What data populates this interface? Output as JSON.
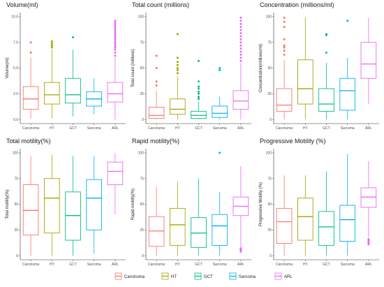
{
  "colors": {
    "Carcinoma": "#F8766D",
    "HT": "#A3A500",
    "GCT": "#00BF7D",
    "Sarcoma": "#00B0F6",
    "ARL": "#E76BF3"
  },
  "legend": {
    "position": "bottom",
    "items": [
      "Carcinoma",
      "HT",
      "GCT",
      "Sarcoma",
      "ARL"
    ]
  },
  "chart_data": [
    {
      "type": "boxplot",
      "title": "Volume(ml)",
      "xlabel": "",
      "ylabel": "Volume(ml)",
      "ylim": [
        -0.4,
        10.4
      ],
      "yticks": [
        0,
        2.5,
        5,
        7.5,
        10
      ],
      "ytick_labels": [
        "0.0",
        "2.5",
        "5.0",
        "7.5",
        "10.0"
      ],
      "categories": [
        "Carcinoma",
        "HT",
        "GCT",
        "Sarcoma",
        "ARL"
      ],
      "boxes": [
        {
          "name": "Carcinoma",
          "min": 0.1,
          "q1": 1.0,
          "median": 2.0,
          "q3": 3.2,
          "max": 6.0,
          "outliers": [
            6.5,
            7.5
          ]
        },
        {
          "name": "HT",
          "min": 0.1,
          "q1": 1.5,
          "median": 2.4,
          "q3": 3.6,
          "max": 6.8,
          "outliers": [
            7.0,
            7.2,
            7.4,
            7.6
          ]
        },
        {
          "name": "GCT",
          "min": 0.3,
          "q1": 1.6,
          "median": 2.4,
          "q3": 4.0,
          "max": 6.8,
          "outliers": [
            8.0
          ]
        },
        {
          "name": "Sarcoma",
          "min": 0.5,
          "q1": 1.3,
          "median": 2.0,
          "q3": 2.7,
          "max": 4.0,
          "outliers": []
        },
        {
          "name": "ARL",
          "min": 0.0,
          "q1": 1.7,
          "median": 2.5,
          "q3": 3.6,
          "max": 6.0,
          "outliers": [
            6.2,
            6.5,
            6.8,
            7.0,
            7.2,
            7.4,
            7.6,
            7.8,
            8.0,
            8.2,
            8.4,
            8.6,
            8.8,
            9.0,
            9.2,
            9.4,
            9.6
          ]
        }
      ]
    },
    {
      "type": "boxplot",
      "title": "Total count (millions)",
      "xlabel": "",
      "ylabel": "Total count (millions)",
      "ylim": [
        -4,
        104
      ],
      "yticks": [
        0,
        25,
        50,
        75,
        100
      ],
      "ytick_labels": [
        "0",
        "25",
        "50",
        "75",
        "100"
      ],
      "categories": [
        "Carcinoma",
        "HT",
        "GCT",
        "Sarcoma",
        "ARL"
      ],
      "boxes": [
        {
          "name": "Carcinoma",
          "min": 0,
          "q1": 1,
          "median": 4,
          "q3": 12,
          "max": 28,
          "outliers": [
            33,
            37,
            50,
            62
          ]
        },
        {
          "name": "HT",
          "min": 0,
          "q1": 5,
          "median": 10,
          "q3": 20,
          "max": 42,
          "outliers": [
            45,
            48,
            50,
            53,
            56,
            60,
            83
          ]
        },
        {
          "name": "GCT",
          "min": 0,
          "q1": 1,
          "median": 4,
          "q3": 8,
          "max": 17,
          "outliers": [
            20,
            22,
            25,
            27,
            30,
            32,
            37,
            57
          ]
        },
        {
          "name": "Sarcoma",
          "min": 0,
          "q1": 2,
          "median": 6,
          "q3": 13,
          "max": 22,
          "outliers": [
            48,
            50
          ]
        },
        {
          "name": "ARL",
          "min": 0,
          "q1": 10,
          "median": 18,
          "q3": 28,
          "max": 55,
          "outliers": [
            57,
            60,
            63,
            66,
            69,
            72,
            75,
            78,
            81,
            84,
            87,
            90,
            93,
            96,
            99
          ]
        }
      ]
    },
    {
      "type": "boxplot",
      "title": "Concentration (millions/ml)",
      "xlabel": "",
      "ylabel": "Concentration(millions/ml)",
      "ylim": [
        -4,
        104
      ],
      "yticks": [
        0,
        25,
        50,
        75,
        100
      ],
      "ytick_labels": [
        "0",
        "25",
        "50",
        "75",
        "100"
      ],
      "categories": [
        "Carcinoma",
        "HT",
        "GCT",
        "Sarcoma",
        "ARL"
      ],
      "boxes": [
        {
          "name": "Carcinoma",
          "min": 0,
          "q1": 8,
          "median": 14,
          "q3": 30,
          "max": 58,
          "outliers": [
            63,
            67,
            70,
            72,
            78,
            90,
            95,
            99
          ]
        },
        {
          "name": "HT",
          "min": 0,
          "q1": 15,
          "median": 30,
          "q3": 58,
          "max": 99,
          "outliers": []
        },
        {
          "name": "GCT",
          "min": 0,
          "q1": 8,
          "median": 15,
          "q3": 30,
          "max": 55,
          "outliers": [
            65,
            82,
            83
          ]
        },
        {
          "name": "Sarcoma",
          "min": 0,
          "q1": 9,
          "median": 28,
          "q3": 40,
          "max": 60,
          "outliers": [
            96
          ]
        },
        {
          "name": "ARL",
          "min": 15,
          "q1": 40,
          "median": 54,
          "q3": 75,
          "max": 99,
          "outliers": []
        }
      ]
    },
    {
      "type": "boxplot",
      "title": "Total motility(%)",
      "xlabel": "",
      "ylabel": "Total motility(%)",
      "ylim": [
        -4,
        104
      ],
      "yticks": [
        0,
        25,
        50,
        75,
        100
      ],
      "ytick_labels": [
        "0",
        "25",
        "50",
        "75",
        "100"
      ],
      "categories": [
        "Carcinoma",
        "HT",
        "GCT",
        "Sarcoma",
        "ARL"
      ],
      "boxes": [
        {
          "name": "Carcinoma",
          "min": 0,
          "q1": 20,
          "median": 44,
          "q3": 69,
          "max": 97,
          "outliers": []
        },
        {
          "name": "HT",
          "min": 0,
          "q1": 22,
          "median": 56,
          "q3": 75,
          "max": 98,
          "outliers": []
        },
        {
          "name": "GCT",
          "min": 0,
          "q1": 15,
          "median": 39,
          "q3": 62,
          "max": 97,
          "outliers": []
        },
        {
          "name": "Sarcoma",
          "min": 2,
          "q1": 25,
          "median": 56,
          "q3": 74,
          "max": 97,
          "outliers": []
        },
        {
          "name": "ARL",
          "min": 40,
          "q1": 69,
          "median": 82,
          "q3": 91,
          "max": 100,
          "outliers": []
        }
      ]
    },
    {
      "type": "boxplot",
      "title": "Rapid motility(%)",
      "xlabel": "",
      "ylabel": "Rapid motility(%)",
      "ylim": [
        -4,
        104
      ],
      "yticks": [
        0,
        25,
        50,
        75,
        100
      ],
      "ytick_labels": [
        "0",
        "25",
        "50",
        "75",
        "100"
      ],
      "categories": [
        "Carcinoma",
        "HT",
        "GCT",
        "Sarcoma",
        "ARL"
      ],
      "boxes": [
        {
          "name": "Carcinoma",
          "min": 0,
          "q1": 9,
          "median": 24,
          "q3": 38,
          "max": 67,
          "outliers": []
        },
        {
          "name": "HT",
          "min": 0,
          "q1": 10,
          "median": 30,
          "q3": 46,
          "max": 72,
          "outliers": []
        },
        {
          "name": "GCT",
          "min": 0,
          "q1": 8,
          "median": 22,
          "q3": 37,
          "max": 75,
          "outliers": []
        },
        {
          "name": "Sarcoma",
          "min": 0,
          "q1": 10,
          "median": 29,
          "q3": 40,
          "max": 62,
          "outliers": [
            100
          ]
        },
        {
          "name": "ARL",
          "min": 8,
          "q1": 39,
          "median": 48,
          "q3": 57,
          "max": 87,
          "outliers": [
            4,
            5,
            6,
            7
          ]
        }
      ]
    },
    {
      "type": "boxplot",
      "title": "Progressive Motility (%)",
      "xlabel": "",
      "ylabel": "Progressive Motility (%)",
      "ylim": [
        -4,
        104
      ],
      "yticks": [
        0,
        25,
        50,
        75,
        100
      ],
      "ytick_labels": [
        "0",
        "25",
        "50",
        "75",
        "100"
      ],
      "categories": [
        "Carcinoma",
        "HT",
        "GCT",
        "Sarcoma",
        "ARL"
      ],
      "boxes": [
        {
          "name": "Carcinoma",
          "min": 0,
          "q1": 12,
          "median": 33,
          "q3": 46,
          "max": 78,
          "outliers": []
        },
        {
          "name": "HT",
          "min": 0,
          "q1": 15,
          "median": 38,
          "q3": 56,
          "max": 78,
          "outliers": []
        },
        {
          "name": "GCT",
          "min": 0,
          "q1": 10,
          "median": 28,
          "q3": 43,
          "max": 82,
          "outliers": []
        },
        {
          "name": "Sarcoma",
          "min": 0,
          "q1": 14,
          "median": 35,
          "q3": 49,
          "max": 99,
          "outliers": []
        },
        {
          "name": "ARL",
          "min": 18,
          "q1": 47,
          "median": 57,
          "q3": 66,
          "max": 92,
          "outliers": [
            11,
            12,
            13,
            14,
            15,
            16
          ]
        }
      ]
    }
  ]
}
